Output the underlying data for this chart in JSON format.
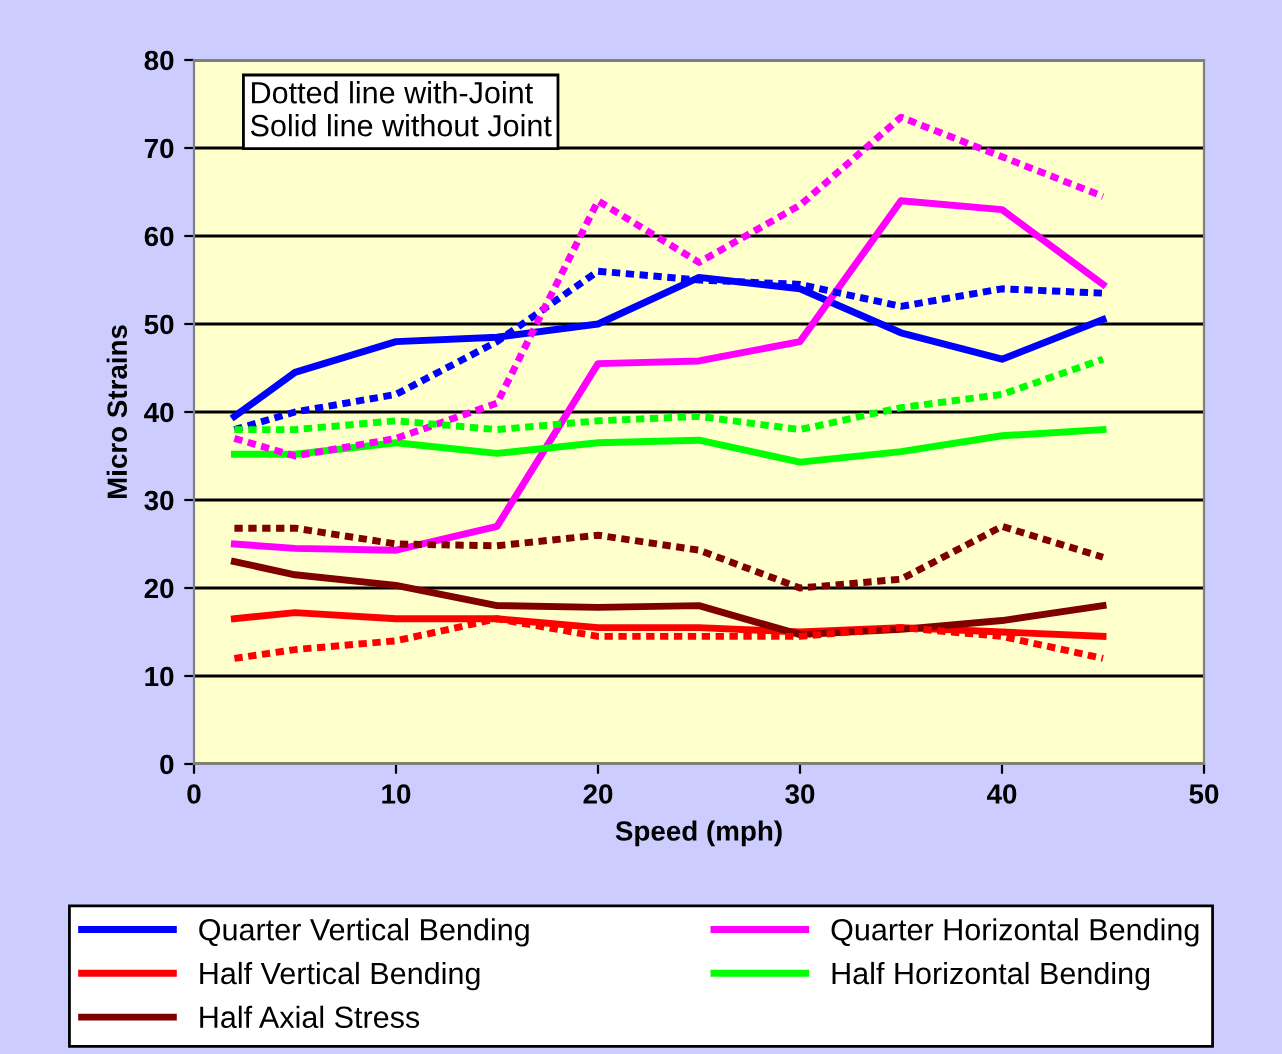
{
  "chart_data": {
    "type": "line",
    "xlabel": "Speed (mph)",
    "ylabel": "Micro Strains",
    "annotations": [
      "Dotted line with-Joint\nSolid line without Joint"
    ],
    "x": [
      2,
      5,
      10,
      15,
      20,
      25,
      30,
      35,
      40,
      45
    ],
    "xlim": [
      0,
      50
    ],
    "xticks": [
      0,
      10,
      20,
      30,
      40,
      50
    ],
    "ylim": [
      0,
      80
    ],
    "yticks": [
      0,
      10,
      20,
      30,
      40,
      50,
      60,
      70,
      80
    ],
    "grid": "y",
    "legend": "bottom",
    "marker": "none",
    "series": [
      {
        "name": "Quarter Vertical Bending",
        "color": "#0000ff",
        "line_style": "solid",
        "values": [
          39.5,
          44.5,
          48,
          48.5,
          50,
          55.3,
          54,
          49,
          46,
          50.5
        ]
      },
      {
        "name": "Quarter Horizontal Bending",
        "color": "#ff00ff",
        "line_style": "solid",
        "values": [
          25,
          24.5,
          24.3,
          27,
          45.5,
          45.8,
          48,
          64,
          63,
          54.5
        ]
      },
      {
        "name": "Half Vertical Bending",
        "color": "#ff0000",
        "line_style": "solid",
        "values": [
          16.5,
          17.2,
          16.5,
          16.5,
          15.5,
          15.5,
          15,
          15.5,
          15,
          14.5
        ]
      },
      {
        "name": "Half Horizontal Bending",
        "color": "#00ff00",
        "line_style": "solid",
        "values": [
          35.2,
          35.2,
          36.5,
          35.3,
          36.5,
          36.8,
          34.3,
          35.5,
          37.3,
          38
        ]
      },
      {
        "name": "Half Axial Stress",
        "color": "#800000",
        "line_style": "solid",
        "values": [
          23,
          21.5,
          20.3,
          18,
          17.8,
          18,
          14.7,
          15.3,
          16.3,
          18
        ]
      },
      {
        "color": "#0000ff",
        "line_style": "dotted",
        "values": [
          38,
          40,
          42,
          48,
          56,
          55,
          54.5,
          52,
          54,
          53.5
        ]
      },
      {
        "color": "#ff00ff",
        "line_style": "dotted",
        "values": [
          37,
          35,
          37,
          41,
          64,
          57,
          63.5,
          73.5,
          69,
          64.5
        ]
      },
      {
        "color": "#ff0000",
        "line_style": "dotted",
        "values": [
          12,
          13,
          14,
          16.5,
          14.5,
          14.5,
          14.5,
          15.5,
          14.5,
          12
        ]
      },
      {
        "color": "#00ff00",
        "line_style": "dotted",
        "values": [
          38,
          38,
          39,
          38,
          39,
          39.5,
          38,
          40.5,
          42,
          46
        ]
      },
      {
        "color": "#800000",
        "line_style": "dotted",
        "values": [
          26.8,
          26.8,
          25,
          24.8,
          26,
          24.3,
          20,
          21,
          27,
          23.5
        ]
      }
    ]
  }
}
